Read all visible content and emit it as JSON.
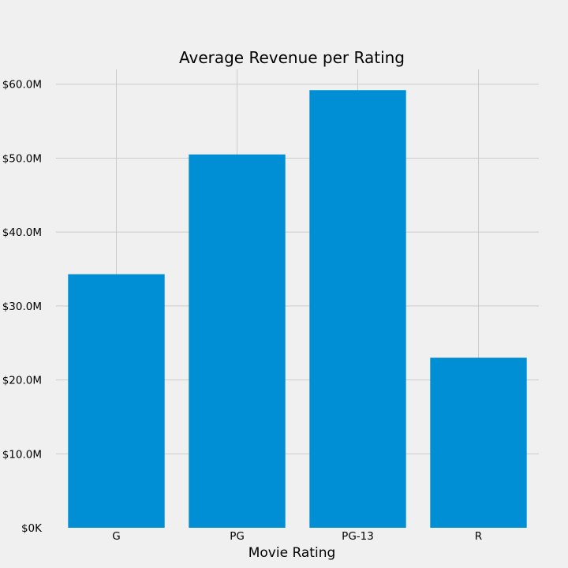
{
  "chart_data": {
    "type": "bar",
    "title": "Average Revenue per Rating",
    "xlabel": "Movie Rating",
    "ylabel": "",
    "categories": [
      "G",
      "PG",
      "PG-13",
      "R"
    ],
    "values": [
      34.3,
      50.5,
      59.2,
      23.0
    ],
    "value_unit": "$M",
    "ylim": [
      0,
      62
    ],
    "yticks": [
      {
        "value": 0,
        "label": "$0K"
      },
      {
        "value": 10,
        "label": "$10.0M"
      },
      {
        "value": 20,
        "label": "$20.0M"
      },
      {
        "value": 30,
        "label": "$30.0M"
      },
      {
        "value": 40,
        "label": "$40.0M"
      },
      {
        "value": 50,
        "label": "$50.0M"
      },
      {
        "value": 60,
        "label": "$60.0M"
      }
    ],
    "grid": true,
    "bar_color": "#008fd5",
    "background_color": "#f0f0f0",
    "grid_color": "#cbcbcb"
  }
}
